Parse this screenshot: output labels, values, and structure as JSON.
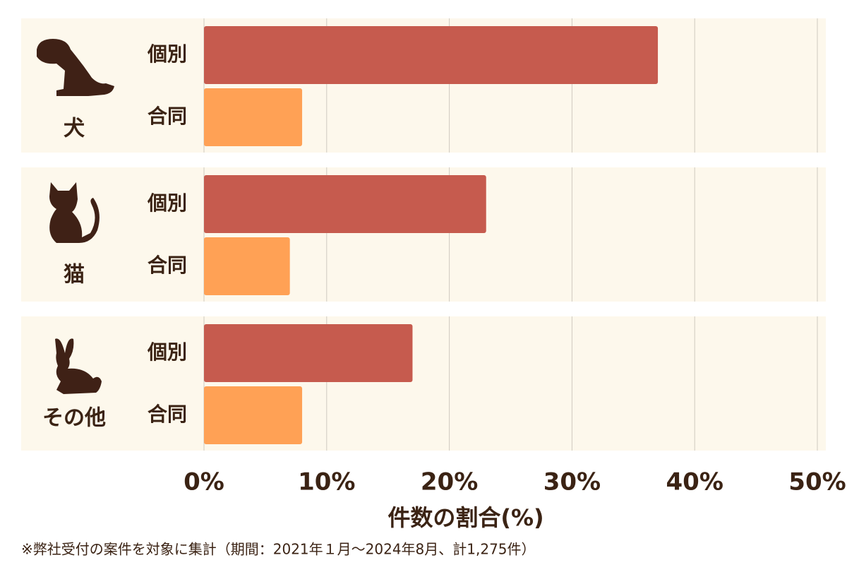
{
  "chart_data": {
    "type": "grouped-horizontal-bar",
    "categories": [
      "犬",
      "猫",
      "その他"
    ],
    "series": [
      {
        "name": "個別",
        "color": "#c65b4e",
        "values": [
          37,
          23,
          17
        ]
      },
      {
        "name": "合同",
        "color": "#ffa155",
        "values": [
          8,
          7,
          8
        ]
      }
    ],
    "xlim": [
      0,
      50
    ],
    "xticks": [
      {
        "value": 0,
        "label": "0%"
      },
      {
        "value": 10,
        "label": "10%"
      },
      {
        "value": 20,
        "label": "20%"
      },
      {
        "value": 30,
        "label": "30%"
      },
      {
        "value": 40,
        "label": "40%"
      },
      {
        "value": 50,
        "label": "50%"
      }
    ],
    "xlabel": "件数の割合(%)",
    "grid": true,
    "note": "※弊社受付の案件を対象に集計（期間：2021年１月～2024年8月、計1,275件）"
  }
}
